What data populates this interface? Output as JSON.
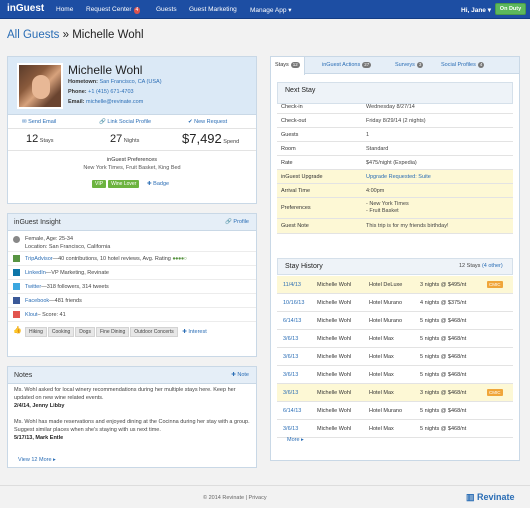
{
  "nav": {
    "brand": "inGuest",
    "items": [
      "Home",
      "Request Center",
      "Guests",
      "Guest Marketing",
      "Manage App ▾"
    ],
    "request_badge": "4",
    "user": "Hi, Jane ▾",
    "status_button": "On Duty"
  },
  "page": {
    "crumb": "All Guests",
    "separator": " » ",
    "guest_name": "Michelle Wohl"
  },
  "profile": {
    "name": "Michelle Wohl",
    "hometown_label": "Hometown:",
    "hometown": "San Francisco, CA (USA)",
    "phone_label": "Phone:",
    "phone": "+1 (415) 671-4703",
    "email_label": "Email:",
    "email": "michelle@revinate.com",
    "actions": [
      "Send Email",
      "Link Social Profile",
      "New Request"
    ],
    "stays_value": "12",
    "stays_label": "Stays",
    "nights_value": "27",
    "nights_label": "Nights",
    "spend_value": "$7,492",
    "spend_label": "Spend",
    "prefs_title": "inGuest Preferences",
    "prefs_text": "New York Times, Fruit Basket, King Bed",
    "badges": [
      "VIP",
      "Wine Lover"
    ],
    "badge_link": "Badge"
  },
  "insight": {
    "title": "inGuest Insight",
    "profile_link": "Profile",
    "demo_line1": "Female, Age: 25-34",
    "demo_line2": "Location: San Francisco, California",
    "tripadvisor_link": "TripAdvisor",
    "tripadvisor_text": "—40 contributions, 10 hotel reviews, Avg. Rating",
    "rating": 4,
    "linkedin_link": "LinkedIn",
    "linkedin_text": "—VP Marketing, Revinate",
    "twitter_link": "Twitter",
    "twitter_text": "—318 followers, 314 tweets",
    "facebook_link": "Facebook",
    "facebook_text": "—481 friends",
    "klout_link": "Klout",
    "klout_text": "– Score: 41",
    "interests": [
      "Hiking",
      "Cooking",
      "Dogs",
      "Fine Dining",
      "Outdoor Concerts"
    ],
    "interest_link": "Interest"
  },
  "notes": {
    "title": "Notes",
    "add_link": "Note",
    "items": [
      {
        "text": "Ms. Wohl asked for local winery recommendations during her multiple stays here. Keep her updated on new wine related events.",
        "meta": "2/4/14, Jenny Libby"
      },
      {
        "text": "Ms. Wohl has made reservations and enjoyed dining at the Cocinna during her stay with a group. Suggest similar places when she's staying with us next time.",
        "meta": "5/17/13, Mark Entle"
      }
    ],
    "more": "View 12 More ▸"
  },
  "tabs": [
    {
      "label": "Stays",
      "count": "12"
    },
    {
      "label": "inGuest Actions",
      "count": "27"
    },
    {
      "label": "Surveys",
      "count": "3"
    },
    {
      "label": "Social Profiles",
      "count": "4"
    }
  ],
  "next_stay": {
    "title": "Next Stay",
    "rows": [
      {
        "k": "Check-in",
        "v": "Wednesday 8/27/14"
      },
      {
        "k": "Check-out",
        "v": "Friday 8/29/14 (2 nights)"
      },
      {
        "k": "Guests",
        "v": "1"
      },
      {
        "k": "Room",
        "v": "Standard"
      },
      {
        "k": "Rate",
        "v": "$475/night (Expedia)"
      },
      {
        "k": "inGuest Upgrade",
        "v": "Upgrade Requested: Suite"
      },
      {
        "k": "Arrival Time",
        "v": "4:00pm"
      },
      {
        "k": "Preferences",
        "v": "- New York Times",
        "v2": "- Fruit Basket"
      },
      {
        "k": "Guest Note",
        "v": "This trip is for my friends birthday!"
      }
    ]
  },
  "history": {
    "title": "Stay History",
    "count_text": "12 Stays",
    "other_link": "(4 other)",
    "rows": [
      {
        "date": "11/4/13",
        "name": "Michelle Wohl",
        "hotel": "Hotel DeLuxe",
        "nights": "3 nights @ $495/nt",
        "tag": "CMIC"
      },
      {
        "date": "10/16/13",
        "name": "Michelle Wohl",
        "hotel": "Hotel Murano",
        "nights": "4 nights @ $375/nt",
        "tag": ""
      },
      {
        "date": "6/14/13",
        "name": "Michelle Wohl",
        "hotel": "Hotel Murano",
        "nights": "5 nights @ $468/nt",
        "tag": ""
      },
      {
        "date": "3/6/13",
        "name": "Michelle Wohl",
        "hotel": "Hotel Max",
        "nights": "5 nights @ $468/nt",
        "tag": ""
      },
      {
        "date": "3/6/13",
        "name": "Michelle Wohl",
        "hotel": "Hotel Max",
        "nights": "5 nights @ $468/nt",
        "tag": ""
      },
      {
        "date": "3/6/13",
        "name": "Michelle Wohl",
        "hotel": "Hotel Max",
        "nights": "5 nights @ $468/nt",
        "tag": ""
      },
      {
        "date": "3/6/13",
        "name": "Michelle Wohl",
        "hotel": "Hotel Max",
        "nights": "3 nights @ $468/nt",
        "tag": "CMIC"
      },
      {
        "date": "6/14/13",
        "name": "Michelle Wohl",
        "hotel": "Hotel Murano",
        "nights": "5 nights @ $468/nt",
        "tag": ""
      },
      {
        "date": "3/6/13",
        "name": "Michelle Wohl",
        "hotel": "Hotel Max",
        "nights": "5 nights @ $468/nt",
        "tag": ""
      }
    ],
    "more": "More ▸"
  },
  "footer": {
    "text": "© 2014 Revinate | Privacy",
    "logo": "Revinate"
  },
  "colors": {
    "nav": "#1d4ea3",
    "link": "#2a6db5",
    "accent_green": "#5cb85c",
    "highlight": "#fdf8d5",
    "tag_orange": "#f0a63a"
  }
}
